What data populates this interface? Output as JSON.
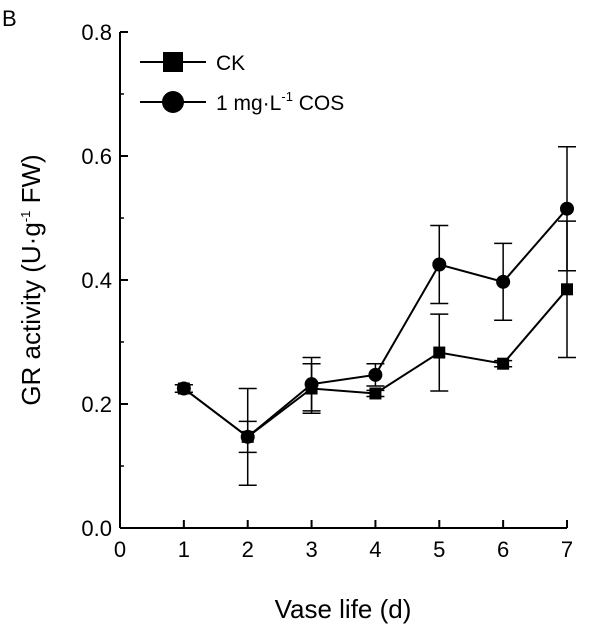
{
  "chart_data": {
    "type": "line",
    "panel_label": "B",
    "xlabel": "Vase life (d)",
    "ylabel": {
      "prefix": "GR activity (U·g",
      "sup": "-1",
      "suffix": " FW)"
    },
    "xlim": [
      0,
      7
    ],
    "ylim": [
      0.0,
      0.8
    ],
    "x_ticks": [
      "0",
      "1",
      "2",
      "3",
      "4",
      "5",
      "6",
      "7"
    ],
    "y_ticks": [
      "0.0",
      "0.2",
      "0.4",
      "0.6",
      "0.8"
    ],
    "legend_position": "top-left",
    "series": [
      {
        "name": "CK",
        "legend": {
          "text": "CK"
        },
        "marker": "square",
        "x": [
          1,
          2,
          3,
          4,
          5,
          6,
          7
        ],
        "values": [
          0.225,
          0.147,
          0.225,
          0.217,
          0.283,
          0.265,
          0.385
        ],
        "errors": [
          0.006,
          0.078,
          0.04,
          0.005,
          0.062,
          0.005,
          0.11
        ]
      },
      {
        "name": "1 mg·L-1 COS",
        "legend": {
          "text": "1 mg·L",
          "sup": "-1",
          "suffix": " COS"
        },
        "marker": "circle",
        "x": [
          1,
          2,
          3,
          4,
          5,
          6,
          7
        ],
        "values": [
          0.225,
          0.147,
          0.232,
          0.247,
          0.425,
          0.397,
          0.515
        ],
        "errors": [
          0.006,
          0.025,
          0.043,
          0.018,
          0.063,
          0.062,
          0.1
        ]
      }
    ]
  }
}
